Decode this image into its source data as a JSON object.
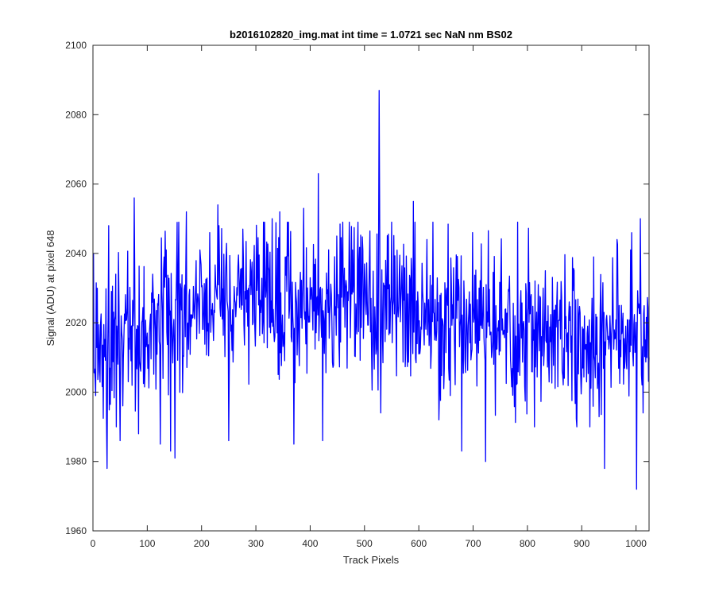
{
  "figure": {
    "background": "#ffffff"
  },
  "chart_data": {
    "type": "line",
    "title": "b2016102820_img.mat int time = 1.0721 sec  NaN nm BS02",
    "xlabel": "Track Pixels",
    "ylabel": "Signal (ADU) at pixel 648",
    "xlim": [
      0,
      1024
    ],
    "ylim": [
      1960,
      2100
    ],
    "xticks": [
      0,
      100,
      200,
      300,
      400,
      500,
      600,
      700,
      800,
      900,
      1000
    ],
    "yticks": [
      1960,
      1980,
      2000,
      2020,
      2040,
      2060,
      2080,
      2100
    ],
    "grid": false,
    "legend": "none",
    "series": [
      {
        "color": "#0000ff",
        "n_points": 1024,
        "baseline": [
          [
            0,
            2014
          ],
          [
            100,
            2018
          ],
          [
            200,
            2024
          ],
          [
            300,
            2025
          ],
          [
            400,
            2024
          ],
          [
            500,
            2026
          ],
          [
            600,
            2024
          ],
          [
            700,
            2020
          ],
          [
            800,
            2018
          ],
          [
            900,
            2016
          ],
          [
            1000,
            2015
          ],
          [
            1024,
            2016
          ]
        ],
        "noise_amplitude": 11,
        "key_points": [
          {
            "x": 1,
            "y": 2040
          },
          {
            "x": 5,
            "y": 1999
          },
          {
            "x": 26,
            "y": 1978
          },
          {
            "x": 29,
            "y": 2048
          },
          {
            "x": 42,
            "y": 2034
          },
          {
            "x": 50,
            "y": 1986
          },
          {
            "x": 76,
            "y": 2056
          },
          {
            "x": 84,
            "y": 1988
          },
          {
            "x": 110,
            "y": 2034
          },
          {
            "x": 124,
            "y": 1985
          },
          {
            "x": 135,
            "y": 2041
          },
          {
            "x": 143,
            "y": 1983
          },
          {
            "x": 151,
            "y": 1981
          },
          {
            "x": 172,
            "y": 2052
          },
          {
            "x": 197,
            "y": 2041
          },
          {
            "x": 215,
            "y": 2046
          },
          {
            "x": 230,
            "y": 2054
          },
          {
            "x": 250,
            "y": 1986
          },
          {
            "x": 276,
            "y": 2047
          },
          {
            "x": 316,
            "y": 2049
          },
          {
            "x": 330,
            "y": 2050
          },
          {
            "x": 344,
            "y": 2052
          },
          {
            "x": 370,
            "y": 1985
          },
          {
            "x": 388,
            "y": 2053
          },
          {
            "x": 415,
            "y": 2063
          },
          {
            "x": 423,
            "y": 1986
          },
          {
            "x": 460,
            "y": 2049
          },
          {
            "x": 527,
            "y": 2087
          },
          {
            "x": 530,
            "y": 1994
          },
          {
            "x": 590,
            "y": 2055
          },
          {
            "x": 615,
            "y": 2044
          },
          {
            "x": 679,
            "y": 1983
          },
          {
            "x": 699,
            "y": 2046
          },
          {
            "x": 723,
            "y": 1980
          },
          {
            "x": 782,
            "y": 2049
          },
          {
            "x": 922,
            "y": 2039
          },
          {
            "x": 942,
            "y": 1978
          },
          {
            "x": 965,
            "y": 2044
          },
          {
            "x": 990,
            "y": 2041
          },
          {
            "x": 1001,
            "y": 1972
          },
          {
            "x": 1008,
            "y": 2050
          },
          {
            "x": 1013,
            "y": 1994
          },
          {
            "x": 1024,
            "y": 2010
          }
        ]
      }
    ]
  }
}
